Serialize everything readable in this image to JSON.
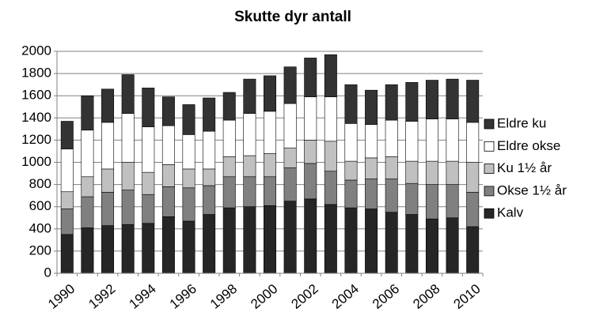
{
  "chart_data": {
    "type": "stacked-bar",
    "title": "Skutte dyr antall",
    "categories": [
      "1990",
      null,
      "1992",
      null,
      "1994",
      null,
      "1996",
      null,
      "1998",
      null,
      "2000",
      null,
      "2002",
      null,
      "2004",
      null,
      "2006",
      null,
      "2008",
      null,
      "2010"
    ],
    "series": [
      {
        "name": "Kalv",
        "color": "#262626",
        "values": [
          350,
          410,
          430,
          440,
          450,
          510,
          470,
          530,
          590,
          600,
          610,
          650,
          670,
          620,
          590,
          580,
          550,
          530,
          490,
          500,
          420
        ]
      },
      {
        "name": "Okse 1½ år",
        "color": "#808080",
        "values": [
          230,
          280,
          300,
          310,
          260,
          270,
          300,
          260,
          280,
          270,
          260,
          300,
          320,
          300,
          250,
          270,
          300,
          280,
          310,
          300,
          310
        ]
      },
      {
        "name": "Ku 1½ år",
        "color": "#c0c0c0",
        "values": [
          155,
          180,
          210,
          250,
          200,
          200,
          170,
          150,
          180,
          190,
          210,
          180,
          210,
          270,
          170,
          190,
          200,
          200,
          210,
          210,
          270
        ]
      },
      {
        "name": "Eldre okse",
        "color": "#ffffff",
        "values": [
          385,
          420,
          420,
          440,
          410,
          350,
          310,
          340,
          330,
          380,
          380,
          400,
          390,
          400,
          340,
          300,
          330,
          360,
          380,
          380,
          360
        ]
      },
      {
        "name": "Eldre ku",
        "color": "#333333",
        "values": [
          250,
          310,
          300,
          350,
          350,
          260,
          270,
          300,
          250,
          310,
          320,
          330,
          350,
          380,
          350,
          310,
          320,
          350,
          350,
          360,
          380
        ]
      }
    ],
    "ylim": [
      0,
      2000
    ],
    "yticks": [
      0,
      200,
      400,
      600,
      800,
      1000,
      1200,
      1400,
      1600,
      1800,
      2000
    ],
    "grid": true
  }
}
